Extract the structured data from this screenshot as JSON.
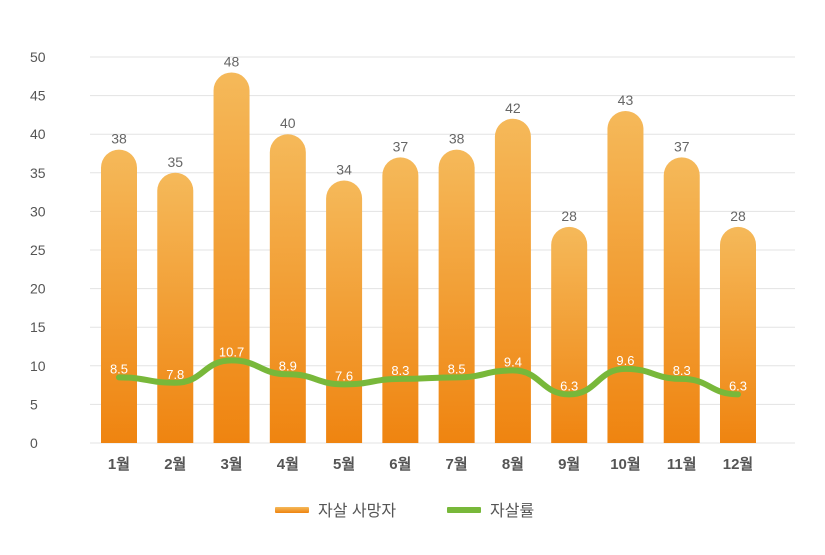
{
  "chart_data": {
    "type": "bar",
    "categories": [
      "1월",
      "2월",
      "3월",
      "4월",
      "5월",
      "6월",
      "7월",
      "8월",
      "9월",
      "10월",
      "11월",
      "12월"
    ],
    "series": [
      {
        "name": "자살 사망자",
        "type": "bar",
        "color": "#f29a2e",
        "values": [
          38,
          35,
          48,
          40,
          34,
          37,
          38,
          42,
          28,
          43,
          37,
          28
        ]
      },
      {
        "name": "자살률",
        "type": "line",
        "color": "#78b83a",
        "values": [
          8.5,
          7.8,
          10.7,
          8.9,
          7.6,
          8.3,
          8.5,
          9.4,
          6.3,
          9.6,
          8.3,
          6.3
        ]
      }
    ],
    "yticks": [
      "0",
      "5",
      "10",
      "15",
      "20",
      "25",
      "30",
      "35",
      "40",
      "45",
      "50"
    ],
    "ylim": [
      0,
      50
    ],
    "grid": true,
    "legend": "bottom"
  }
}
